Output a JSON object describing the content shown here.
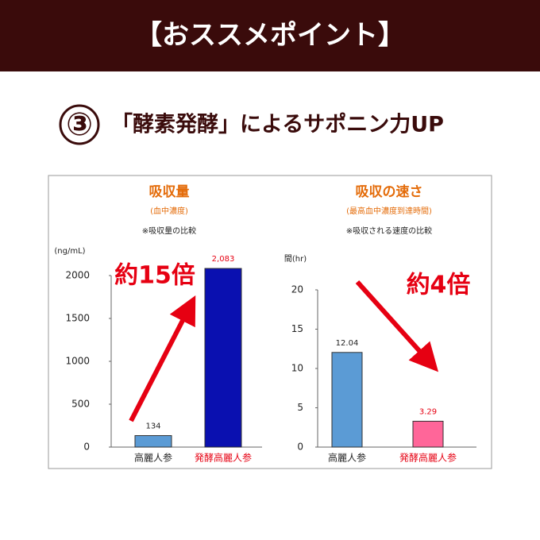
{
  "header": {
    "title": "【おススメポイント】"
  },
  "headline": {
    "number": "③",
    "text": "「酵素発酵」によるサポニン力UP"
  },
  "chart_data": [
    {
      "type": "bar",
      "title": "吸収量",
      "subtitle": "(血中濃度)",
      "note": "※吸収量の比較",
      "y_label": "(ng/mL)",
      "categories": [
        "高麗人参",
        "発酵高麗人参"
      ],
      "values": [
        134,
        2083
      ],
      "value_labels": [
        "134",
        "2,083"
      ],
      "colors": [
        "#5b9bd5",
        "#0a10b0"
      ],
      "ylim": [
        0,
        2200
      ],
      "yticks": [
        0,
        500,
        1000,
        1500,
        2000
      ],
      "annotation": "約15倍",
      "arrow": "up"
    },
    {
      "type": "bar",
      "title": "吸収の速さ",
      "subtitle": "(最高血中濃度到達時間)",
      "note": "※吸収される速度の比較",
      "y_label": "間(hr)",
      "categories": [
        "高麗人参",
        "発酵高麗人参"
      ],
      "values": [
        12.04,
        3.29
      ],
      "value_labels": [
        "12.04",
        "3.29"
      ],
      "colors": [
        "#5b9bd5",
        "#ff6699"
      ],
      "ylim": [
        0,
        22
      ],
      "yticks": [
        0,
        5,
        10,
        15,
        20
      ],
      "annotation": "約4倍",
      "arrow": "down"
    }
  ]
}
